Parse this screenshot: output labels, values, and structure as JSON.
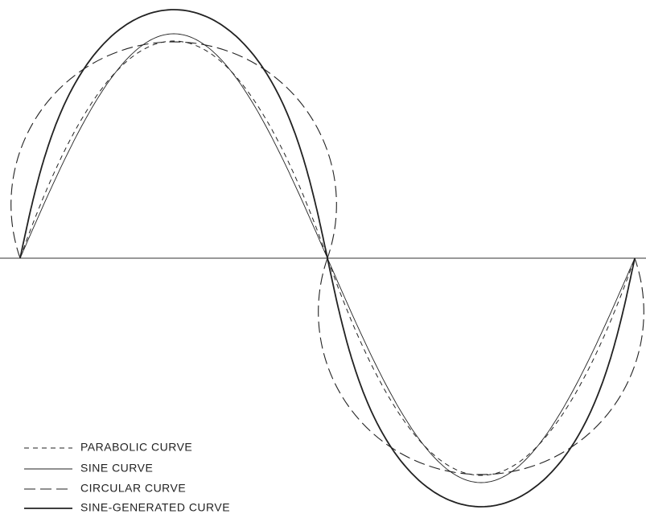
{
  "legend": [
    {
      "label": "PARABOLIC CURVE"
    },
    {
      "label": "SINE CURVE"
    },
    {
      "label": "CIRCULAR CURVE"
    },
    {
      "label": "SINE-GENERATED CURVE"
    }
  ]
}
